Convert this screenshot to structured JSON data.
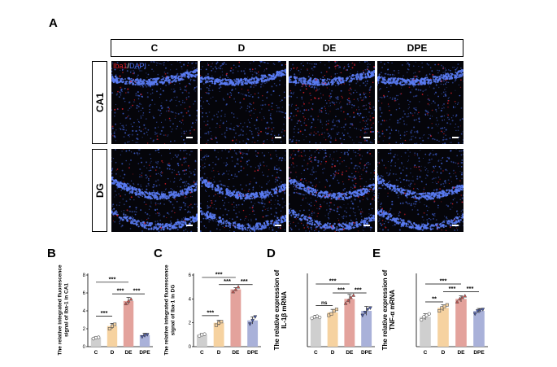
{
  "figure": {
    "panel_a_letter": "A",
    "columns": [
      "C",
      "D",
      "DE",
      "DPE"
    ],
    "rows": [
      "CA1",
      "DG"
    ],
    "stain_legend": {
      "marker": "Iba1",
      "separator": "/",
      "counterstain": "DAPI"
    },
    "colors": {
      "marker": "#e0202a",
      "counterstain": "#4a6ff0"
    }
  },
  "chart_data": [
    {
      "panel": "B",
      "type": "bar",
      "ylabel_lines": [
        "The relative integrated fluorescence",
        "signal of Iba-1 in CA1"
      ],
      "categories": [
        "C",
        "D",
        "DE",
        "DPE"
      ],
      "values": [
        1.0,
        2.3,
        5.1,
        1.3
      ],
      "errors": [
        0.1,
        0.3,
        0.4,
        0.2
      ],
      "points": [
        [
          0.9,
          1.0,
          1.05
        ],
        [
          2.0,
          2.3,
          2.5
        ],
        [
          4.8,
          5.1,
          5.3
        ],
        [
          1.1,
          1.25,
          1.35
        ]
      ],
      "ylim": [
        0,
        8
      ],
      "yticks": [
        "0",
        "2",
        "4",
        "6",
        "8"
      ],
      "colors": [
        "#cfcfcf",
        "#f6d2a0",
        "#e3a29c",
        "#a9b1d9"
      ],
      "markers": [
        "circle",
        "square",
        "triangle-up",
        "triangle-down"
      ],
      "significance": [
        {
          "from": 0,
          "to": 1,
          "label": "***",
          "y": 3.4
        },
        {
          "from": 1,
          "to": 2,
          "label": "***",
          "y": 5.9
        },
        {
          "from": 2,
          "to": 3,
          "label": "***",
          "y": 5.9
        },
        {
          "from": 0,
          "to": 2,
          "label": "***",
          "y": 7.2
        }
      ]
    },
    {
      "panel": "C",
      "type": "bar",
      "ylabel_lines": [
        "The relative integrated fluorescence",
        "signal of Iba-1 in DG"
      ],
      "categories": [
        "C",
        "D",
        "DE",
        "DPE"
      ],
      "values": [
        1.0,
        2.0,
        4.8,
        2.2
      ],
      "errors": [
        0.1,
        0.2,
        0.15,
        0.3
      ],
      "points": [
        [
          0.9,
          1.0,
          1.05
        ],
        [
          1.8,
          2.0,
          2.1
        ],
        [
          4.6,
          4.8,
          5.0
        ],
        [
          1.9,
          2.2,
          2.5
        ]
      ],
      "ylim": [
        0,
        6
      ],
      "yticks": [
        "0",
        "2",
        "4",
        "6"
      ],
      "colors": [
        "#cfcfcf",
        "#f6d2a0",
        "#e3a29c",
        "#a9b1d9"
      ],
      "markers": [
        "circle",
        "square",
        "triangle-up",
        "triangle-down"
      ],
      "significance": [
        {
          "from": 0,
          "to": 1,
          "label": "***",
          "y": 2.6
        },
        {
          "from": 1,
          "to": 2,
          "label": "***",
          "y": 5.2
        },
        {
          "from": 2,
          "to": 3,
          "label": "***",
          "y": 5.2
        },
        {
          "from": 0,
          "to": 2,
          "label": "***",
          "y": 5.8
        }
      ]
    },
    {
      "panel": "D",
      "type": "bar",
      "ylabel_lines": [
        "The relative expression of",
        "IL-1β mRNA"
      ],
      "categories": [
        "C",
        "D",
        "DE",
        "DPE"
      ],
      "values": [
        1.0,
        1.15,
        1.6,
        1.2
      ],
      "errors": [
        0.05,
        0.1,
        0.15,
        0.15
      ],
      "points": [
        [
          0.95,
          1.0,
          1.02,
          0.98
        ],
        [
          1.05,
          1.1,
          1.2,
          1.25
        ],
        [
          1.45,
          1.55,
          1.65,
          1.72
        ],
        [
          1.05,
          1.15,
          1.25,
          1.3
        ]
      ],
      "ylim": [
        0,
        2.4
      ],
      "yticks": [],
      "colors": [
        "#cfcfcf",
        "#f6d2a0",
        "#e3a29c",
        "#a9b1d9"
      ],
      "markers": [
        "circle",
        "square",
        "triangle-up",
        "triangle-down"
      ],
      "significance": [
        {
          "from": 0,
          "to": 1,
          "label": "ns",
          "y": 1.38
        },
        {
          "from": 1,
          "to": 2,
          "label": "***",
          "y": 1.8
        },
        {
          "from": 2,
          "to": 3,
          "label": "***",
          "y": 1.8
        },
        {
          "from": 0,
          "to": 2,
          "label": "***",
          "y": 2.1
        }
      ]
    },
    {
      "panel": "E",
      "type": "bar",
      "ylabel_lines": [
        "The relative expression of",
        "TNF-α mRNA"
      ],
      "categories": [
        "C",
        "D",
        "DE",
        "DPE"
      ],
      "values": [
        1.0,
        1.3,
        1.6,
        1.2
      ],
      "errors": [
        0.1,
        0.1,
        0.1,
        0.08
      ],
      "points": [
        [
          0.9,
          1.0,
          1.05,
          1.1
        ],
        [
          1.2,
          1.3,
          1.35,
          1.4
        ],
        [
          1.5,
          1.6,
          1.65,
          1.7
        ],
        [
          1.1,
          1.2,
          1.22,
          1.25
        ]
      ],
      "ylim": [
        0,
        2.4
      ],
      "yticks": [],
      "colors": [
        "#cfcfcf",
        "#f6d2a0",
        "#e3a29c",
        "#a9b1d9"
      ],
      "markers": [
        "circle",
        "square",
        "triangle-up",
        "triangle-down"
      ],
      "significance": [
        {
          "from": 0,
          "to": 1,
          "label": "**",
          "y": 1.5
        },
        {
          "from": 1,
          "to": 2,
          "label": "***",
          "y": 1.84
        },
        {
          "from": 2,
          "to": 3,
          "label": "***",
          "y": 1.84
        },
        {
          "from": 0,
          "to": 2,
          "label": "***",
          "y": 2.1
        }
      ]
    }
  ]
}
